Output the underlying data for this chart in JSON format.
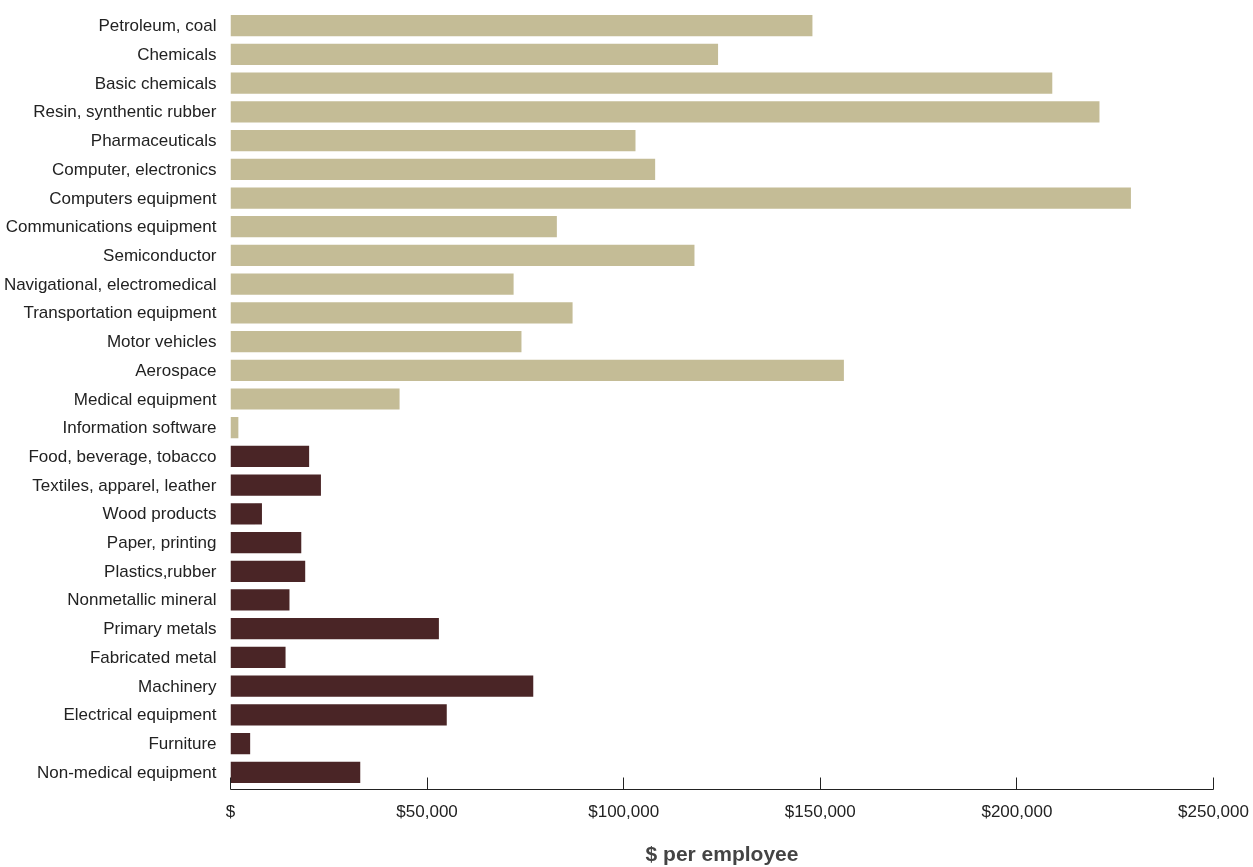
{
  "chart_data": {
    "type": "bar",
    "orientation": "horizontal",
    "xlabel": "$ per employee",
    "categories": [
      "Petroleum, coal",
      "Chemicals",
      "Basic chemicals",
      "Resin, synthentic rubber",
      "Pharmaceuticals",
      "Computer, electronics",
      "Computers equipment",
      "Communications equipment",
      "Semiconductor",
      "Navigational, electromedical",
      "Transportation equipment",
      "Motor vehicles",
      "Aerospace",
      "Medical equipment",
      "Information software",
      "Food, beverage, tobacco",
      "Textiles, apparel, leather",
      "Wood products",
      "Paper, printing",
      "Plastics,rubber",
      "Nonmetallic mineral",
      "Primary metals",
      "Fabricated metal",
      "Machinery",
      "Electrical equipment",
      "Furniture",
      "Non-medical equipment"
    ],
    "values": [
      148000,
      124000,
      209000,
      221000,
      103000,
      108000,
      229000,
      83000,
      118000,
      72000,
      87000,
      74000,
      156000,
      43000,
      2000,
      20000,
      23000,
      8000,
      18000,
      19000,
      15000,
      53000,
      14000,
      77000,
      55000,
      5000,
      33000
    ],
    "colors": [
      "#c4bc96",
      "#c4bc96",
      "#c4bc96",
      "#c4bc96",
      "#c4bc96",
      "#c4bc96",
      "#c4bc96",
      "#c4bc96",
      "#c4bc96",
      "#c4bc96",
      "#c4bc96",
      "#c4bc96",
      "#c4bc96",
      "#c4bc96",
      "#c4bc96",
      "#4a2526",
      "#4a2526",
      "#4a2526",
      "#4a2526",
      "#4a2526",
      "#4a2526",
      "#4a2526",
      "#4a2526",
      "#4a2526",
      "#4a2526",
      "#4a2526",
      "#4a2526"
    ],
    "xlim": [
      0,
      250000
    ],
    "xticks": [
      {
        "value": 0,
        "label": "$"
      },
      {
        "value": 50000,
        "label": "$50,000"
      },
      {
        "value": 100000,
        "label": "$100,000"
      },
      {
        "value": 150000,
        "label": "$150,000"
      },
      {
        "value": 200000,
        "label": "$200,000"
      },
      {
        "value": 250000,
        "label": "$250,000"
      }
    ],
    "grid": false
  }
}
